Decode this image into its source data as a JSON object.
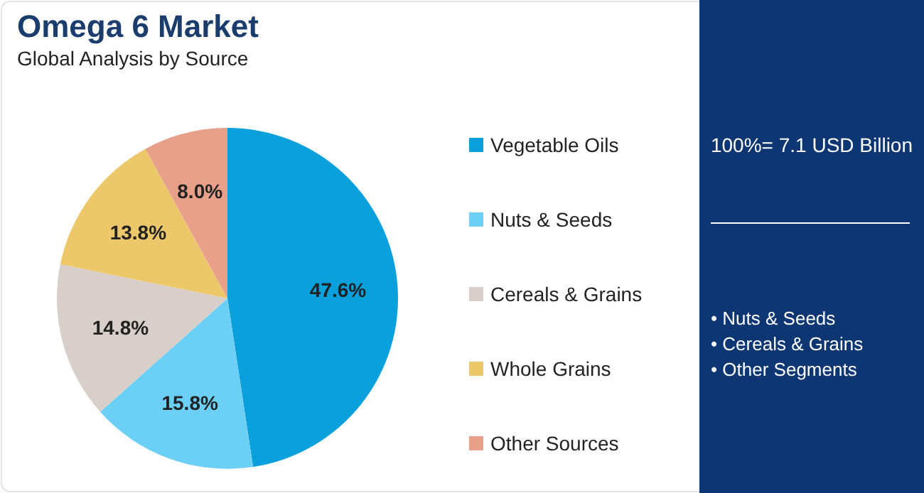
{
  "chart_data": {
    "type": "pie",
    "title": "Omega 6 Market",
    "subtitle": "Global Analysis by Source",
    "categories": [
      "Vegetable Oils",
      "Nuts & Seeds",
      "Cereals & Grains",
      "Whole Grains",
      "Other Sources"
    ],
    "values": [
      47.6,
      15.8,
      14.8,
      13.8,
      8.0
    ],
    "value_labels": [
      "47.6%",
      "15.8%",
      "14.8%",
      "13.8%",
      "8.0%"
    ],
    "colors": [
      "#0aa0dc",
      "#6ccff5",
      "#d8cfca",
      "#ecc86b",
      "#e9a08b"
    ],
    "legend": "right",
    "annotations": [
      "100%= 7.1 USD Billion",
      "• Nuts & Seeds",
      "• Cereals & Grains",
      "• Other Segments"
    ]
  }
}
